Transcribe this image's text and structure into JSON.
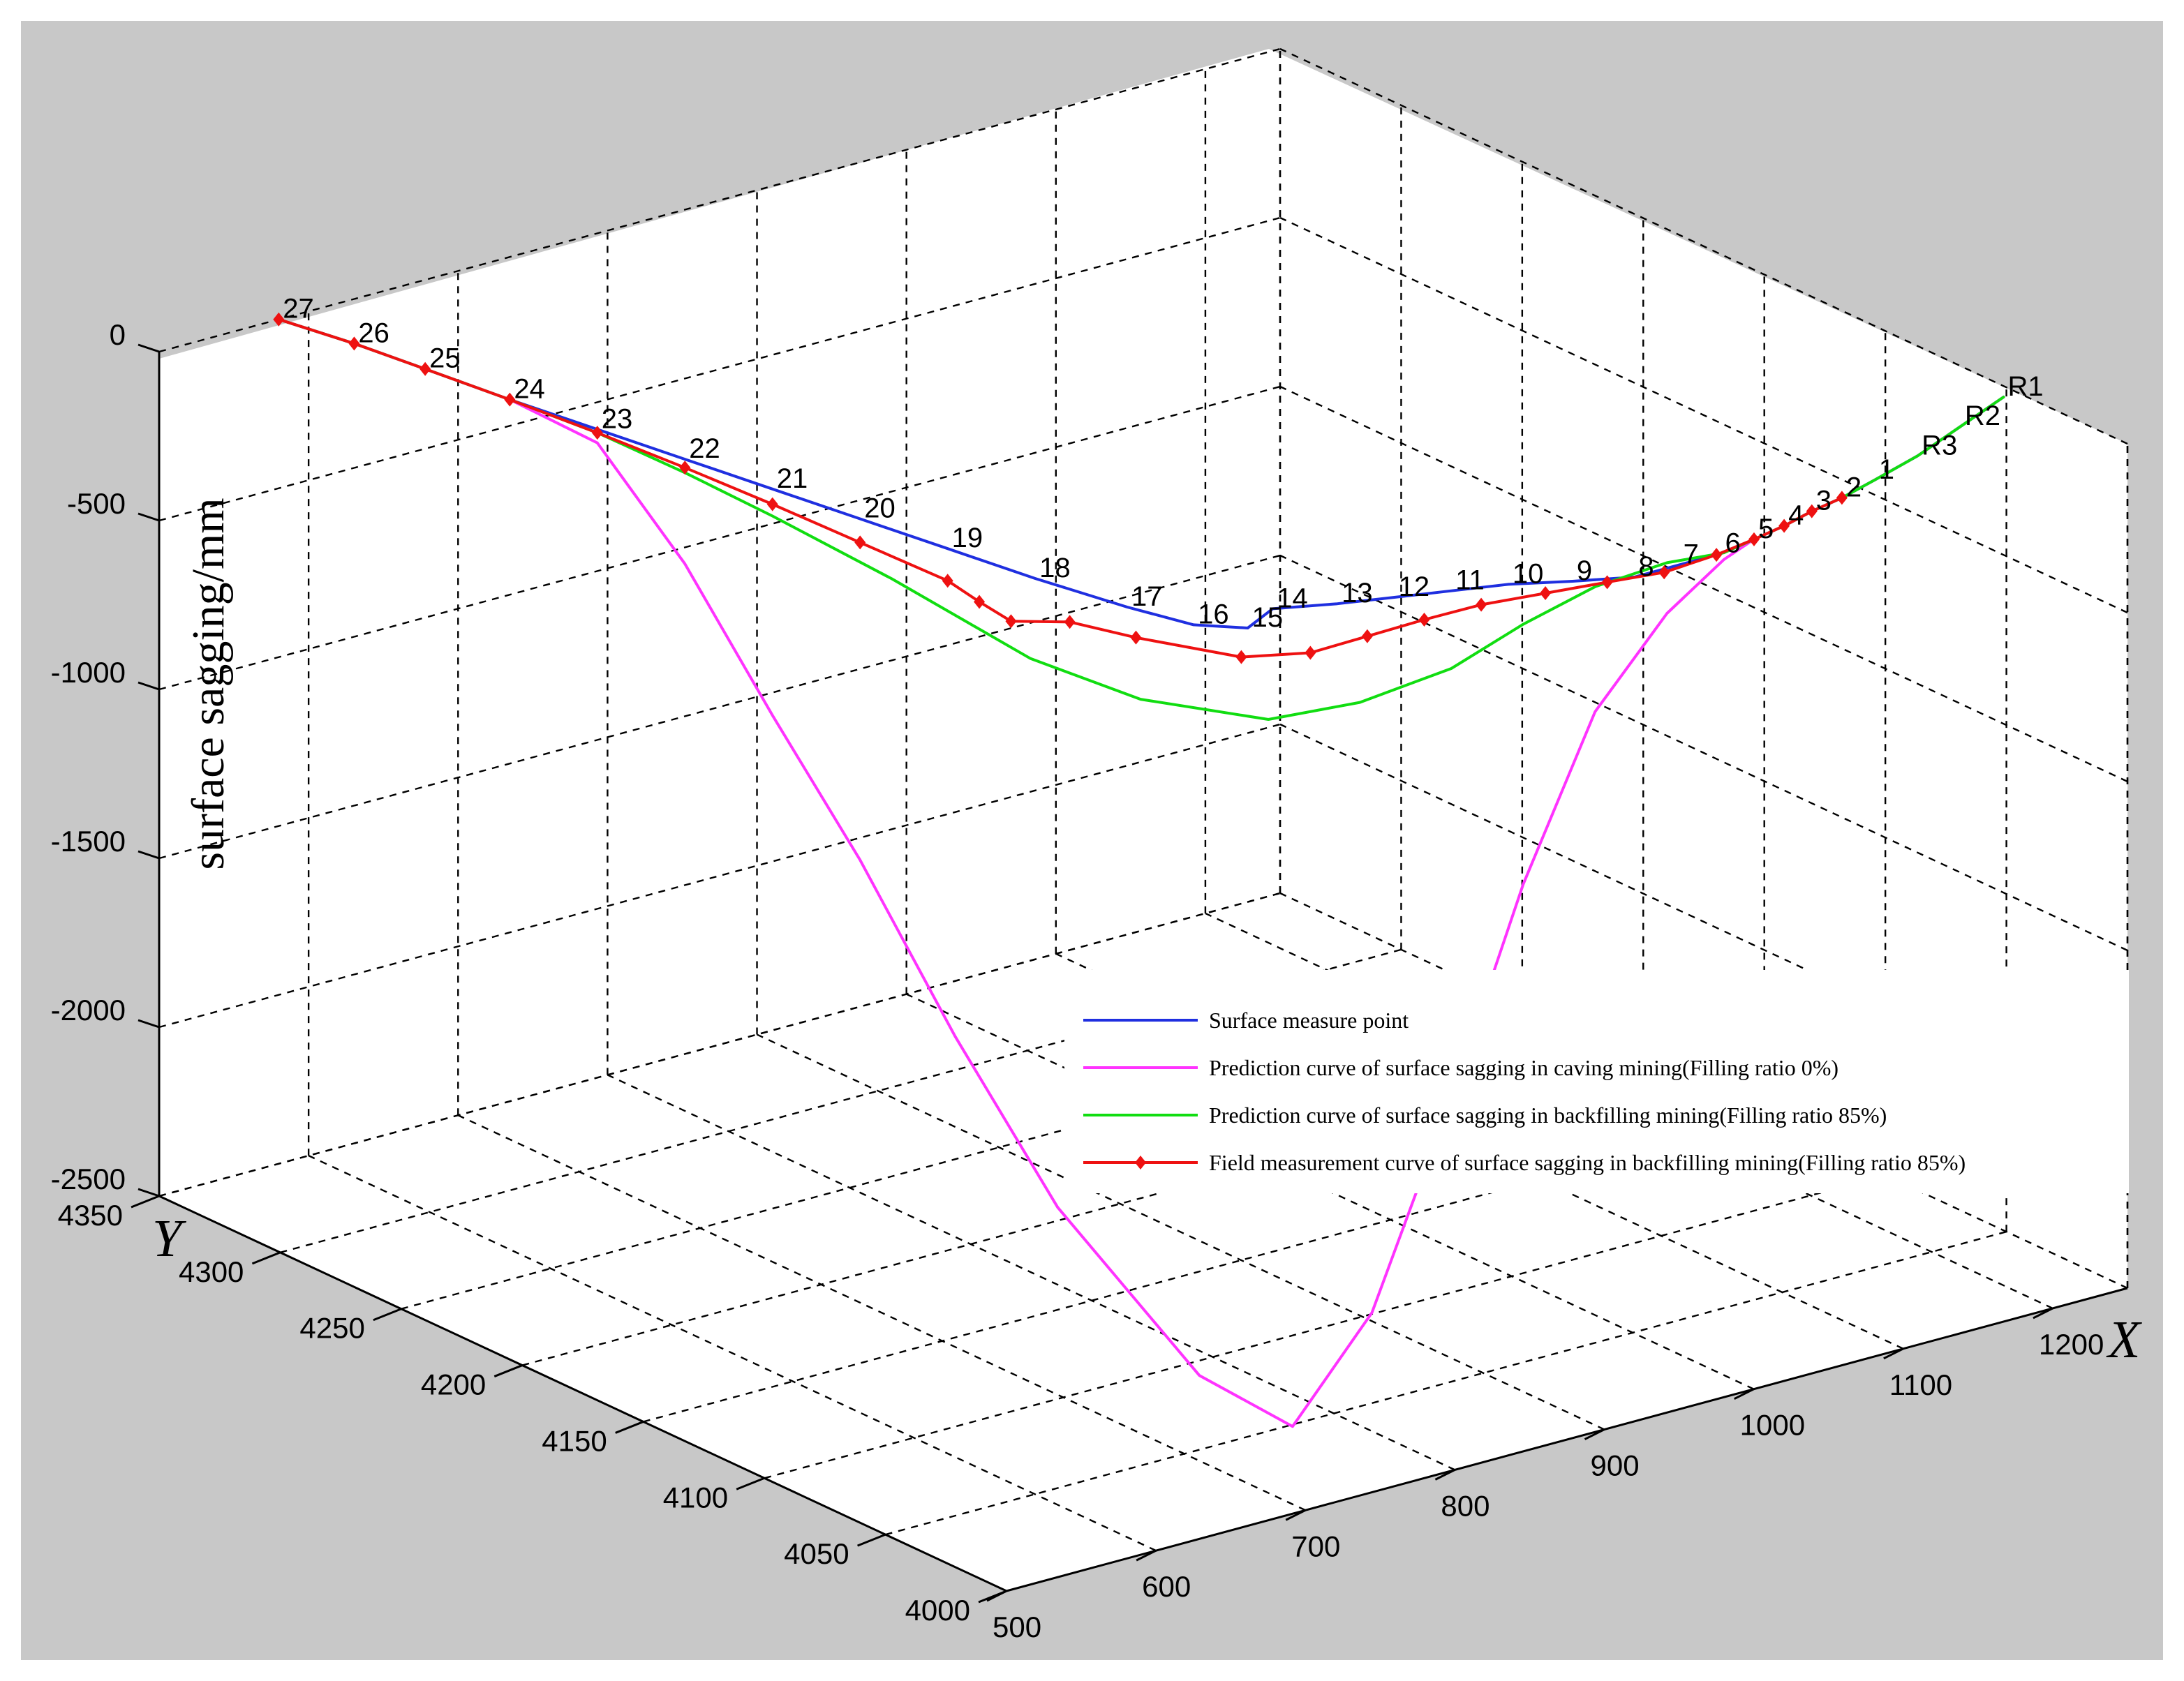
{
  "chart_data": {
    "type": "line",
    "projection": "3d",
    "axes": {
      "x": {
        "label": "X",
        "ticks": [
          500,
          600,
          700,
          800,
          900,
          1000,
          1100,
          1200
        ],
        "range": [
          500,
          1250
        ]
      },
      "y": {
        "label": "Y",
        "ticks": [
          4000,
          4050,
          4100,
          4150,
          4200,
          4250,
          4300,
          4350
        ],
        "range": [
          4000,
          4350
        ]
      },
      "z": {
        "label": "surface sagging/mm",
        "ticks": [
          0,
          -500,
          -1000,
          -1500,
          -2000,
          -2500
        ],
        "range": [
          -2500,
          0
        ]
      }
    },
    "grid": true,
    "legend_position": "bottom-right",
    "measure_point_labels": [
      "27",
      "26",
      "25",
      "24",
      "23",
      "22",
      "21",
      "20",
      "19",
      "18",
      "17",
      "16",
      "15",
      "14",
      "13",
      "12",
      "11",
      "10",
      "9",
      "8",
      "7",
      "6",
      "5",
      "4",
      "3",
      "2",
      "1",
      "R3",
      "R2",
      "R1"
    ],
    "series": [
      {
        "name": "Surface measure point",
        "color": "#1f2fe0",
        "marker": "none",
        "points": [
          [
            580,
            4350,
            0
          ],
          [
            590,
            4325,
            0
          ],
          [
            597,
            4300,
            0
          ],
          [
            605,
            4270,
            0
          ],
          [
            615,
            4240,
            0
          ],
          [
            625,
            4210,
            0
          ],
          [
            635,
            4180,
            0
          ],
          [
            645,
            4150,
            0
          ],
          [
            655,
            4120,
            0
          ],
          [
            665,
            4090,
            0
          ],
          [
            678,
            4060,
            0
          ],
          [
            690,
            4040,
            0
          ],
          [
            710,
            4030,
            0
          ],
          [
            738,
            4037,
            0
          ],
          [
            770,
            4030,
            0
          ],
          [
            800,
            4025,
            0
          ],
          [
            830,
            4020,
            0
          ],
          [
            860,
            4015,
            0
          ],
          [
            890,
            4007,
            0
          ],
          [
            920,
            4000,
            0
          ],
          [
            950,
            4000,
            0
          ],
          [
            978,
            4000,
            0
          ],
          [
            1005,
            4003,
            0
          ],
          [
            1030,
            4006,
            0
          ],
          [
            1055,
            4010,
            0
          ],
          [
            1080,
            4013,
            0
          ],
          [
            1110,
            4018,
            0
          ],
          [
            1150,
            4025,
            0
          ],
          [
            1195,
            4035,
            0
          ],
          [
            1240,
            4045,
            0
          ]
        ]
      },
      {
        "name": "Prediction curve of surface sagging in caving mining(Filling ratio 0%)",
        "color": "#ff33ff",
        "marker": "none",
        "points": [
          [
            580,
            4350,
            0
          ],
          [
            590,
            4325,
            0
          ],
          [
            597,
            4300,
            0
          ],
          [
            605,
            4270,
            0
          ],
          [
            615,
            4240,
            -40
          ],
          [
            625,
            4210,
            -310
          ],
          [
            635,
            4180,
            -670
          ],
          [
            645,
            4150,
            -1010
          ],
          [
            660,
            4120,
            -1450
          ],
          [
            680,
            4090,
            -1880
          ],
          [
            710,
            4050,
            -2280
          ],
          [
            740,
            4030,
            -2400
          ],
          [
            785,
            4025,
            -2100
          ],
          [
            830,
            4020,
            -1500
          ],
          [
            870,
            4015,
            -900
          ],
          [
            910,
            4010,
            -420
          ],
          [
            950,
            4005,
            -160
          ],
          [
            980,
            4000,
            -20
          ],
          [
            1005,
            4003,
            0
          ],
          [
            1030,
            4006,
            0
          ],
          [
            1055,
            4010,
            0
          ],
          [
            1080,
            4013,
            0
          ],
          [
            1110,
            4018,
            0
          ],
          [
            1150,
            4025,
            0
          ],
          [
            1195,
            4035,
            0
          ],
          [
            1240,
            4045,
            0
          ]
        ]
      },
      {
        "name": "Prediction curve of surface sagging in backfilling mining(Filling ratio 85%)",
        "color": "#11dd11",
        "marker": "none",
        "points": [
          [
            580,
            4350,
            0
          ],
          [
            590,
            4325,
            0
          ],
          [
            597,
            4300,
            0
          ],
          [
            605,
            4270,
            0
          ],
          [
            615,
            4240,
            -10
          ],
          [
            625,
            4210,
            -40
          ],
          [
            635,
            4180,
            -80
          ],
          [
            650,
            4140,
            -150
          ],
          [
            670,
            4095,
            -260
          ],
          [
            695,
            4065,
            -310
          ],
          [
            740,
            4040,
            -340
          ],
          [
            785,
            4030,
            -310
          ],
          [
            830,
            4020,
            -230
          ],
          [
            870,
            4015,
            -130
          ],
          [
            910,
            4010,
            -50
          ],
          [
            950,
            4005,
            -10
          ],
          [
            980,
            4000,
            0
          ],
          [
            1005,
            4003,
            0
          ],
          [
            1030,
            4006,
            0
          ],
          [
            1055,
            4010,
            0
          ],
          [
            1080,
            4013,
            0
          ],
          [
            1110,
            4018,
            0
          ],
          [
            1150,
            4025,
            0
          ],
          [
            1195,
            4035,
            0
          ],
          [
            1240,
            4045,
            0
          ]
        ]
      },
      {
        "name": "Field measurement curve of surface sagging in backfilling mining(Filling ratio 85%)",
        "color": "#ee1111",
        "marker": "diamond",
        "points": [
          [
            580,
            4350,
            0
          ],
          [
            590,
            4325,
            0
          ],
          [
            597,
            4300,
            0
          ],
          [
            605,
            4270,
            0
          ],
          [
            615,
            4240,
            -10
          ],
          [
            625,
            4210,
            -25
          ],
          [
            635,
            4180,
            -45
          ],
          [
            645,
            4150,
            -70
          ],
          [
            655,
            4120,
            -95
          ],
          [
            660,
            4110,
            -130
          ],
          [
            665,
            4100,
            -160
          ],
          [
            680,
            4085,
            -130
          ],
          [
            700,
            4070,
            -150
          ],
          [
            730,
            4045,
            -160
          ],
          [
            760,
            4035,
            -150
          ],
          [
            790,
            4030,
            -120
          ],
          [
            820,
            4025,
            -90
          ],
          [
            850,
            4020,
            -65
          ],
          [
            880,
            4012,
            -40
          ],
          [
            910,
            4005,
            -20
          ],
          [
            940,
            4000,
            -10
          ],
          [
            975,
            4000,
            0
          ],
          [
            1005,
            4003,
            0
          ],
          [
            1030,
            4006,
            0
          ],
          [
            1055,
            4010,
            0
          ],
          [
            1080,
            4013,
            0
          ]
        ]
      }
    ]
  }
}
